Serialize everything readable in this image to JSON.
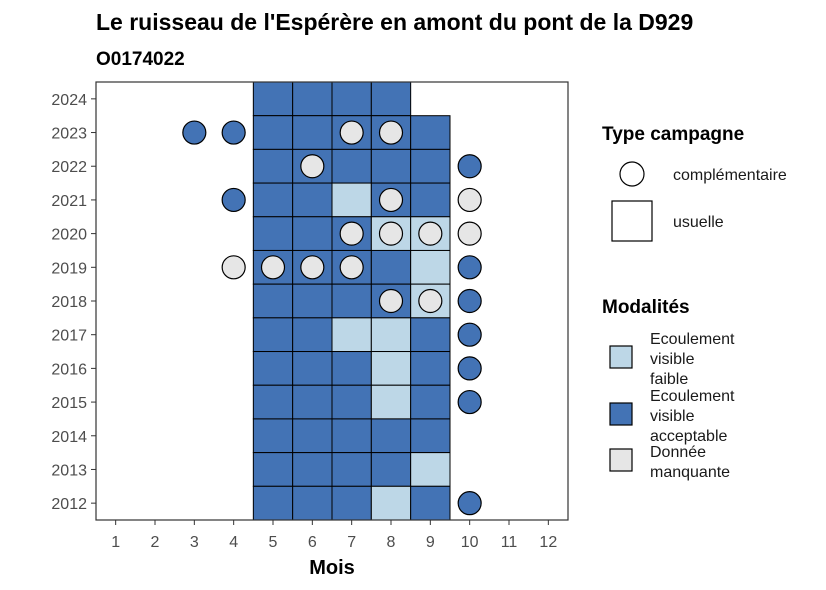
{
  "chart_data": {
    "type": "heatmap",
    "title": "Le ruisseau de l'Espérère en amont du pont de la D929",
    "subtitle": "O0174022",
    "xlabel": "Mois",
    "ylabel": "",
    "x_ticks": [
      "1",
      "2",
      "3",
      "4",
      "5",
      "6",
      "7",
      "8",
      "9",
      "10",
      "11",
      "12"
    ],
    "y_ticks": [
      "2024",
      "2023",
      "2022",
      "2021",
      "2020",
      "2019",
      "2018",
      "2017",
      "2016",
      "2015",
      "2014",
      "2013",
      "2012"
    ],
    "xlim": [
      0.5,
      12.5
    ],
    "ylim": [
      2011.5,
      2024.5
    ],
    "colors": {
      "faible": "#bdd7e7",
      "acceptable": "#4373b5",
      "manquante": "#e6e6e6"
    },
    "legend": {
      "type_title": "Type campagne",
      "type_items": [
        {
          "key": "complementaire",
          "label": "complémentaire"
        },
        {
          "key": "usuelle",
          "label": "usuelle"
        }
      ],
      "mod_title": "Modalités",
      "mod_items": [
        {
          "key": "faible",
          "lines": [
            "Ecoulement",
            "visible",
            "faible"
          ]
        },
        {
          "key": "acceptable",
          "lines": [
            "Ecoulement",
            "visible",
            "acceptable"
          ]
        },
        {
          "key": "manquante",
          "lines": [
            "Donnée",
            "manquante"
          ]
        }
      ]
    },
    "squares": [
      {
        "year": 2024,
        "month": 5,
        "mod": "acceptable"
      },
      {
        "year": 2024,
        "month": 6,
        "mod": "acceptable"
      },
      {
        "year": 2024,
        "month": 7,
        "mod": "acceptable"
      },
      {
        "year": 2024,
        "month": 8,
        "mod": "acceptable"
      },
      {
        "year": 2023,
        "month": 5,
        "mod": "acceptable"
      },
      {
        "year": 2023,
        "month": 6,
        "mod": "acceptable"
      },
      {
        "year": 2023,
        "month": 7,
        "mod": "acceptable"
      },
      {
        "year": 2023,
        "month": 8,
        "mod": "acceptable"
      },
      {
        "year": 2023,
        "month": 9,
        "mod": "acceptable"
      },
      {
        "year": 2022,
        "month": 5,
        "mod": "acceptable"
      },
      {
        "year": 2022,
        "month": 6,
        "mod": "acceptable"
      },
      {
        "year": 2022,
        "month": 7,
        "mod": "acceptable"
      },
      {
        "year": 2022,
        "month": 8,
        "mod": "acceptable"
      },
      {
        "year": 2022,
        "month": 9,
        "mod": "acceptable"
      },
      {
        "year": 2021,
        "month": 5,
        "mod": "acceptable"
      },
      {
        "year": 2021,
        "month": 6,
        "mod": "acceptable"
      },
      {
        "year": 2021,
        "month": 7,
        "mod": "faible"
      },
      {
        "year": 2021,
        "month": 8,
        "mod": "acceptable"
      },
      {
        "year": 2021,
        "month": 9,
        "mod": "acceptable"
      },
      {
        "year": 2020,
        "month": 5,
        "mod": "acceptable"
      },
      {
        "year": 2020,
        "month": 6,
        "mod": "acceptable"
      },
      {
        "year": 2020,
        "month": 7,
        "mod": "acceptable"
      },
      {
        "year": 2020,
        "month": 8,
        "mod": "faible"
      },
      {
        "year": 2020,
        "month": 9,
        "mod": "faible"
      },
      {
        "year": 2019,
        "month": 5,
        "mod": "acceptable"
      },
      {
        "year": 2019,
        "month": 6,
        "mod": "acceptable"
      },
      {
        "year": 2019,
        "month": 7,
        "mod": "acceptable"
      },
      {
        "year": 2019,
        "month": 8,
        "mod": "acceptable"
      },
      {
        "year": 2019,
        "month": 9,
        "mod": "faible"
      },
      {
        "year": 2018,
        "month": 5,
        "mod": "acceptable"
      },
      {
        "year": 2018,
        "month": 6,
        "mod": "acceptable"
      },
      {
        "year": 2018,
        "month": 7,
        "mod": "acceptable"
      },
      {
        "year": 2018,
        "month": 8,
        "mod": "acceptable"
      },
      {
        "year": 2018,
        "month": 9,
        "mod": "faible"
      },
      {
        "year": 2017,
        "month": 5,
        "mod": "acceptable"
      },
      {
        "year": 2017,
        "month": 6,
        "mod": "acceptable"
      },
      {
        "year": 2017,
        "month": 7,
        "mod": "faible"
      },
      {
        "year": 2017,
        "month": 8,
        "mod": "faible"
      },
      {
        "year": 2017,
        "month": 9,
        "mod": "acceptable"
      },
      {
        "year": 2016,
        "month": 5,
        "mod": "acceptable"
      },
      {
        "year": 2016,
        "month": 6,
        "mod": "acceptable"
      },
      {
        "year": 2016,
        "month": 7,
        "mod": "acceptable"
      },
      {
        "year": 2016,
        "month": 8,
        "mod": "faible"
      },
      {
        "year": 2016,
        "month": 9,
        "mod": "acceptable"
      },
      {
        "year": 2015,
        "month": 5,
        "mod": "acceptable"
      },
      {
        "year": 2015,
        "month": 6,
        "mod": "acceptable"
      },
      {
        "year": 2015,
        "month": 7,
        "mod": "acceptable"
      },
      {
        "year": 2015,
        "month": 8,
        "mod": "faible"
      },
      {
        "year": 2015,
        "month": 9,
        "mod": "acceptable"
      },
      {
        "year": 2014,
        "month": 5,
        "mod": "acceptable"
      },
      {
        "year": 2014,
        "month": 6,
        "mod": "acceptable"
      },
      {
        "year": 2014,
        "month": 7,
        "mod": "acceptable"
      },
      {
        "year": 2014,
        "month": 8,
        "mod": "acceptable"
      },
      {
        "year": 2014,
        "month": 9,
        "mod": "acceptable"
      },
      {
        "year": 2013,
        "month": 5,
        "mod": "acceptable"
      },
      {
        "year": 2013,
        "month": 6,
        "mod": "acceptable"
      },
      {
        "year": 2013,
        "month": 7,
        "mod": "acceptable"
      },
      {
        "year": 2013,
        "month": 8,
        "mod": "acceptable"
      },
      {
        "year": 2013,
        "month": 9,
        "mod": "faible"
      },
      {
        "year": 2012,
        "month": 5,
        "mod": "acceptable"
      },
      {
        "year": 2012,
        "month": 6,
        "mod": "acceptable"
      },
      {
        "year": 2012,
        "month": 7,
        "mod": "acceptable"
      },
      {
        "year": 2012,
        "month": 8,
        "mod": "faible"
      },
      {
        "year": 2012,
        "month": 9,
        "mod": "acceptable"
      }
    ],
    "circles": [
      {
        "year": 2023,
        "month": 3,
        "mod": "acceptable"
      },
      {
        "year": 2023,
        "month": 4,
        "mod": "acceptable"
      },
      {
        "year": 2023,
        "month": 7,
        "mod": "manquante"
      },
      {
        "year": 2023,
        "month": 8,
        "mod": "manquante"
      },
      {
        "year": 2022,
        "month": 6,
        "mod": "manquante"
      },
      {
        "year": 2022,
        "month": 10,
        "mod": "acceptable"
      },
      {
        "year": 2021,
        "month": 4,
        "mod": "acceptable"
      },
      {
        "year": 2021,
        "month": 8,
        "mod": "manquante"
      },
      {
        "year": 2021,
        "month": 10,
        "mod": "manquante"
      },
      {
        "year": 2020,
        "month": 7,
        "mod": "manquante"
      },
      {
        "year": 2020,
        "month": 8,
        "mod": "manquante"
      },
      {
        "year": 2020,
        "month": 9,
        "mod": "manquante"
      },
      {
        "year": 2020,
        "month": 10,
        "mod": "manquante"
      },
      {
        "year": 2019,
        "month": 4,
        "mod": "manquante"
      },
      {
        "year": 2019,
        "month": 5,
        "mod": "manquante"
      },
      {
        "year": 2019,
        "month": 6,
        "mod": "manquante"
      },
      {
        "year": 2019,
        "month": 7,
        "mod": "manquante"
      },
      {
        "year": 2019,
        "month": 10,
        "mod": "acceptable"
      },
      {
        "year": 2018,
        "month": 8,
        "mod": "manquante"
      },
      {
        "year": 2018,
        "month": 9,
        "mod": "manquante"
      },
      {
        "year": 2018,
        "month": 10,
        "mod": "acceptable"
      },
      {
        "year": 2017,
        "month": 10,
        "mod": "acceptable"
      },
      {
        "year": 2016,
        "month": 10,
        "mod": "acceptable"
      },
      {
        "year": 2015,
        "month": 10,
        "mod": "acceptable"
      },
      {
        "year": 2012,
        "month": 10,
        "mod": "acceptable"
      }
    ]
  }
}
